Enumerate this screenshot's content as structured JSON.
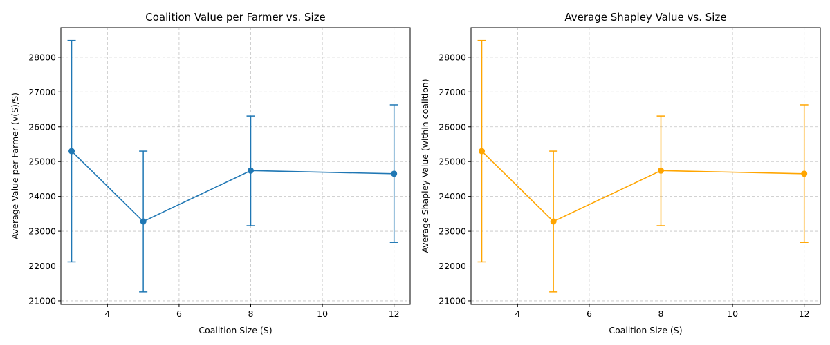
{
  "chart_data": [
    {
      "type": "line",
      "title": "Coalition Value per Farmer vs. Size",
      "xlabel": "Coalition Size (S)",
      "ylabel": "Average Value per Farmer (v(S)/S)",
      "xlim": [
        2.7,
        12.45
      ],
      "ylim": [
        20900,
        28850
      ],
      "x_ticks": [
        4,
        6,
        8,
        10,
        12
      ],
      "y_ticks": [
        21000,
        22000,
        23000,
        24000,
        25000,
        26000,
        27000,
        28000
      ],
      "grid": true,
      "color": "#1f77b4",
      "series": [
        {
          "x": [
            3,
            5,
            8,
            12
          ],
          "values": [
            25300,
            23280,
            24740,
            24650
          ],
          "error_low": [
            22120,
            21260,
            23160,
            22680
          ],
          "error_high": [
            28480,
            25300,
            26310,
            26630
          ]
        }
      ]
    },
    {
      "type": "line",
      "title": "Average Shapley Value vs. Size",
      "xlabel": "Coalition Size (S)",
      "ylabel": "Average Shapley Value (within coalition)",
      "xlim": [
        2.7,
        12.45
      ],
      "ylim": [
        20900,
        28850
      ],
      "x_ticks": [
        4,
        6,
        8,
        10,
        12
      ],
      "y_ticks": [
        21000,
        22000,
        23000,
        24000,
        25000,
        26000,
        27000,
        28000
      ],
      "grid": true,
      "color": "#ffa500",
      "series": [
        {
          "x": [
            3,
            5,
            8,
            12
          ],
          "values": [
            25300,
            23280,
            24740,
            24650
          ],
          "error_low": [
            22120,
            21260,
            23160,
            22680
          ],
          "error_high": [
            28480,
            25300,
            26310,
            26630
          ]
        }
      ]
    }
  ]
}
